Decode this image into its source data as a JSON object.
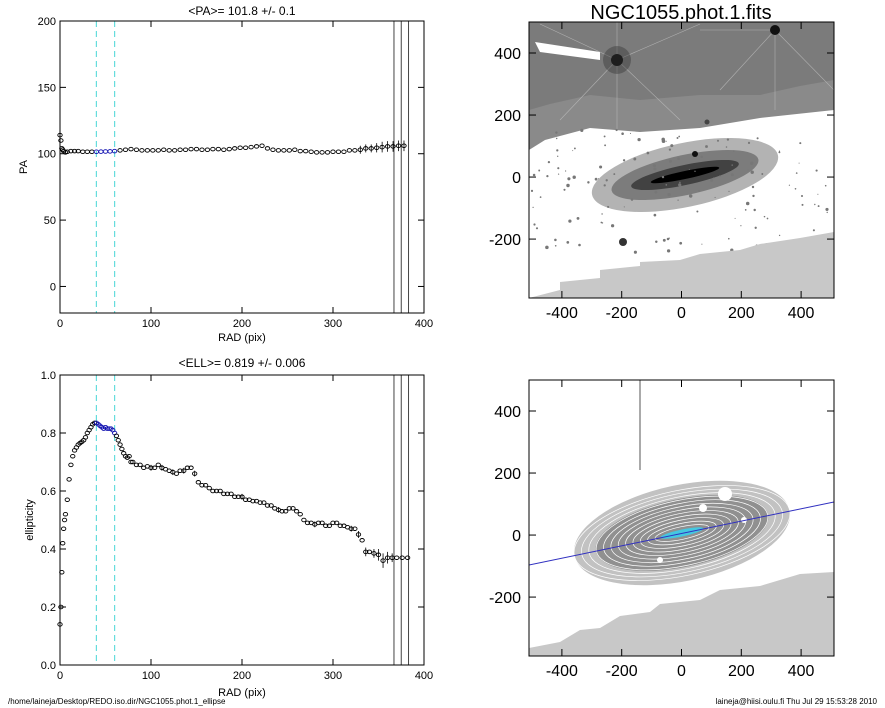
{
  "footer": {
    "left": "/home/laineja/Desktop/REDO.iso.dir/NGC1055.phot.1_ellipse",
    "right": "laineja@hiisi.oulu.fi  Thu Jul 29 15:53:28 2010"
  },
  "colors": {
    "profile_points": "#000000",
    "fit_range_points": "#1010b0",
    "fit_range_lines": "#66dddd",
    "limit_lines": "#444444",
    "image_gray": "#8a8a8a",
    "masked_region": "#c8c8c8",
    "contours": "#ffffff",
    "major_axis_line": "#3030c0",
    "inner_isophotes": "#44c8e0"
  },
  "chart_data": [
    {
      "type": "scatter",
      "id": "pa-profile",
      "title": "<PA>= 101.8 +/-   0.1",
      "xlabel": "RAD (pix)",
      "ylabel": "PA",
      "xlim": [
        0,
        400
      ],
      "ylim": [
        -20,
        200
      ],
      "xticks": [
        "0",
        "100",
        "200",
        "300",
        "400"
      ],
      "yticks": [
        "0",
        "50",
        "100",
        "150",
        "200"
      ],
      "fit_range_lines": [
        40,
        60
      ],
      "limit_lines": [
        367,
        375,
        383
      ],
      "fit_range_highlight": [
        40,
        60
      ],
      "points": [
        [
          0,
          114
        ],
        [
          1,
          110
        ],
        [
          2,
          104
        ],
        [
          3,
          103
        ],
        [
          4,
          102
        ],
        [
          6,
          101
        ],
        [
          8,
          101.5
        ],
        [
          12,
          102
        ],
        [
          16,
          102
        ],
        [
          20,
          102
        ],
        [
          25,
          101.5
        ],
        [
          30,
          101.5
        ],
        [
          35,
          101.5
        ],
        [
          40,
          101.5
        ],
        [
          45,
          101.6
        ],
        [
          50,
          101.7
        ],
        [
          55,
          101.8
        ],
        [
          60,
          102
        ],
        [
          66,
          102.5
        ],
        [
          72,
          103
        ],
        [
          78,
          103.5
        ],
        [
          84,
          103
        ],
        [
          90,
          102.5
        ],
        [
          96,
          102.5
        ],
        [
          102,
          102.5
        ],
        [
          108,
          102.5
        ],
        [
          114,
          103
        ],
        [
          120,
          102.5
        ],
        [
          126,
          102.5
        ],
        [
          132,
          103
        ],
        [
          138,
          103
        ],
        [
          144,
          103.5
        ],
        [
          150,
          103.5
        ],
        [
          156,
          103
        ],
        [
          162,
          103
        ],
        [
          168,
          103.5
        ],
        [
          174,
          103.5
        ],
        [
          180,
          103
        ],
        [
          186,
          103.5
        ],
        [
          192,
          104
        ],
        [
          198,
          104.5
        ],
        [
          204,
          104.5
        ],
        [
          210,
          105
        ],
        [
          216,
          105.5
        ],
        [
          222,
          106
        ],
        [
          228,
          104
        ],
        [
          234,
          103
        ],
        [
          240,
          102.5
        ],
        [
          246,
          102.5
        ],
        [
          252,
          102.5
        ],
        [
          258,
          103
        ],
        [
          264,
          102
        ],
        [
          270,
          102
        ],
        [
          276,
          101.5
        ],
        [
          282,
          101
        ],
        [
          288,
          101
        ],
        [
          294,
          101
        ],
        [
          300,
          101.5
        ],
        [
          306,
          101.5
        ],
        [
          312,
          101.5
        ],
        [
          318,
          102.5
        ],
        [
          324,
          102.5
        ],
        [
          330,
          103
        ],
        [
          336,
          104
        ],
        [
          342,
          104
        ],
        [
          348,
          104.5
        ],
        [
          354,
          105
        ],
        [
          360,
          105.5
        ],
        [
          366,
          105.5
        ],
        [
          372,
          106
        ],
        [
          378,
          106
        ]
      ],
      "error_bars": [
        [
          330,
          3
        ],
        [
          336,
          3
        ],
        [
          342,
          3
        ],
        [
          348,
          3.5
        ],
        [
          354,
          4
        ],
        [
          360,
          4
        ],
        [
          366,
          4
        ],
        [
          372,
          4
        ],
        [
          378,
          4
        ]
      ]
    },
    {
      "type": "scatter",
      "id": "ell-profile",
      "title": "<ELL>= 0.819 +/-  0.006",
      "xlabel": "RAD (pix)",
      "ylabel": "ellipticity",
      "xlim": [
        0,
        400
      ],
      "ylim": [
        0,
        1
      ],
      "xticks": [
        "0",
        "100",
        "200",
        "300",
        "400"
      ],
      "yticks": [
        "0.0",
        "0.2",
        "0.4",
        "0.6",
        "0.8",
        "1.0"
      ],
      "fit_range_lines": [
        40,
        60
      ],
      "limit_lines": [
        367,
        375,
        383
      ],
      "fit_range_highlight": [
        40,
        60
      ],
      "points": [
        [
          0,
          0.14
        ],
        [
          1,
          0.2
        ],
        [
          2,
          0.32
        ],
        [
          3,
          0.42
        ],
        [
          4,
          0.47
        ],
        [
          5,
          0.5
        ],
        [
          6,
          0.52
        ],
        [
          8,
          0.57
        ],
        [
          10,
          0.64
        ],
        [
          12,
          0.69
        ],
        [
          14,
          0.72
        ],
        [
          16,
          0.74
        ],
        [
          18,
          0.75
        ],
        [
          20,
          0.76
        ],
        [
          22,
          0.765
        ],
        [
          24,
          0.77
        ],
        [
          26,
          0.775
        ],
        [
          28,
          0.785
        ],
        [
          30,
          0.8
        ],
        [
          32,
          0.81
        ],
        [
          34,
          0.82
        ],
        [
          36,
          0.83
        ],
        [
          38,
          0.835
        ],
        [
          40,
          0.835
        ],
        [
          42,
          0.83
        ],
        [
          44,
          0.825
        ],
        [
          46,
          0.82
        ],
        [
          48,
          0.815
        ],
        [
          50,
          0.82
        ],
        [
          52,
          0.815
        ],
        [
          54,
          0.815
        ],
        [
          56,
          0.815
        ],
        [
          58,
          0.81
        ],
        [
          60,
          0.8
        ],
        [
          62,
          0.79
        ],
        [
          64,
          0.775
        ],
        [
          66,
          0.76
        ],
        [
          68,
          0.745
        ],
        [
          70,
          0.73
        ],
        [
          72,
          0.72
        ],
        [
          74,
          0.715
        ],
        [
          76,
          0.72
        ],
        [
          78,
          0.7
        ],
        [
          80,
          0.7
        ],
        [
          84,
          0.69
        ],
        [
          88,
          0.69
        ],
        [
          92,
          0.68
        ],
        [
          96,
          0.685
        ],
        [
          100,
          0.68
        ],
        [
          104,
          0.68
        ],
        [
          108,
          0.69
        ],
        [
          112,
          0.68
        ],
        [
          116,
          0.675
        ],
        [
          120,
          0.67
        ],
        [
          124,
          0.665
        ],
        [
          128,
          0.66
        ],
        [
          132,
          0.67
        ],
        [
          136,
          0.67
        ],
        [
          140,
          0.68
        ],
        [
          144,
          0.68
        ],
        [
          148,
          0.66
        ],
        [
          152,
          0.63
        ],
        [
          156,
          0.62
        ],
        [
          160,
          0.62
        ],
        [
          164,
          0.61
        ],
        [
          168,
          0.6
        ],
        [
          172,
          0.6
        ],
        [
          176,
          0.6
        ],
        [
          180,
          0.59
        ],
        [
          184,
          0.59
        ],
        [
          188,
          0.59
        ],
        [
          192,
          0.58
        ],
        [
          196,
          0.58
        ],
        [
          200,
          0.58
        ],
        [
          204,
          0.57
        ],
        [
          208,
          0.57
        ],
        [
          212,
          0.565
        ],
        [
          216,
          0.565
        ],
        [
          220,
          0.56
        ],
        [
          224,
          0.56
        ],
        [
          228,
          0.55
        ],
        [
          232,
          0.55
        ],
        [
          236,
          0.54
        ],
        [
          240,
          0.535
        ],
        [
          244,
          0.53
        ],
        [
          248,
          0.53
        ],
        [
          252,
          0.54
        ],
        [
          256,
          0.54
        ],
        [
          260,
          0.53
        ],
        [
          264,
          0.52
        ],
        [
          268,
          0.5
        ],
        [
          272,
          0.49
        ],
        [
          276,
          0.49
        ],
        [
          280,
          0.485
        ],
        [
          284,
          0.49
        ],
        [
          288,
          0.49
        ],
        [
          292,
          0.48
        ],
        [
          296,
          0.48
        ],
        [
          300,
          0.49
        ],
        [
          304,
          0.49
        ],
        [
          308,
          0.48
        ],
        [
          312,
          0.48
        ],
        [
          316,
          0.475
        ],
        [
          320,
          0.47
        ],
        [
          324,
          0.47
        ],
        [
          328,
          0.45
        ],
        [
          332,
          0.43
        ],
        [
          336,
          0.39
        ],
        [
          340,
          0.39
        ],
        [
          345,
          0.385
        ],
        [
          350,
          0.38
        ],
        [
          355,
          0.36
        ],
        [
          360,
          0.37
        ],
        [
          365,
          0.37
        ],
        [
          370,
          0.37
        ],
        [
          376,
          0.37
        ],
        [
          382,
          0.37
        ]
      ],
      "error_bars": [
        [
          100,
          0.01
        ],
        [
          112,
          0.01
        ],
        [
          124,
          0.01
        ],
        [
          136,
          0.01
        ],
        [
          148,
          0.01
        ],
        [
          200,
          0.01
        ],
        [
          240,
          0.01
        ],
        [
          280,
          0.01
        ],
        [
          320,
          0.01
        ],
        [
          328,
          0.012
        ],
        [
          336,
          0.015
        ],
        [
          345,
          0.015
        ],
        [
          350,
          0.02
        ],
        [
          355,
          0.025
        ],
        [
          360,
          0.02
        ],
        [
          365,
          0.015
        ]
      ]
    },
    {
      "type": "heatmap",
      "id": "image-top",
      "title": "NGC1055.phot.1.fits",
      "xlim": [
        -510,
        510
      ],
      "ylim": [
        -390,
        500
      ],
      "xticks": [
        "-400",
        "-200",
        "0",
        "200",
        "400"
      ],
      "yticks": [
        "-200",
        "0",
        "200",
        "400"
      ]
    },
    {
      "type": "heatmap",
      "id": "image-bottom",
      "title": "",
      "xlim": [
        -510,
        510
      ],
      "ylim": [
        -390,
        500
      ],
      "xticks": [
        "-400",
        "-200",
        "0",
        "200",
        "400"
      ],
      "yticks": [
        "-200",
        "0",
        "200",
        "400"
      ],
      "major_axis_pa": 101.8,
      "ellipticity": 0.819
    }
  ]
}
